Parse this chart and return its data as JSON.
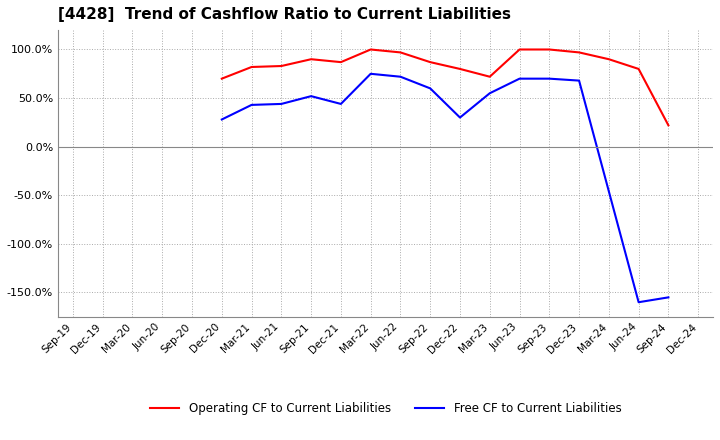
{
  "title": "[4428]  Trend of Cashflow Ratio to Current Liabilities",
  "title_fontsize": 11,
  "x_labels": [
    "Sep-19",
    "Dec-19",
    "Mar-20",
    "Jun-20",
    "Sep-20",
    "Dec-20",
    "Mar-21",
    "Jun-21",
    "Sep-21",
    "Dec-21",
    "Mar-22",
    "Jun-22",
    "Sep-22",
    "Dec-22",
    "Mar-23",
    "Jun-23",
    "Sep-23",
    "Dec-23",
    "Mar-24",
    "Jun-24",
    "Sep-24",
    "Dec-24"
  ],
  "operating_cf": [
    null,
    null,
    null,
    null,
    null,
    70.0,
    82.0,
    83.0,
    90.0,
    87.0,
    100.0,
    97.0,
    87.0,
    80.0,
    72.0,
    100.0,
    100.0,
    97.0,
    90.0,
    80.0,
    22.0,
    null
  ],
  "free_cf": [
    null,
    null,
    null,
    null,
    null,
    28.0,
    43.0,
    44.0,
    52.0,
    44.0,
    75.0,
    72.0,
    60.0,
    30.0,
    55.0,
    70.0,
    70.0,
    68.0,
    null,
    -160.0,
    -155.0,
    null
  ],
  "ylim": [
    -175,
    120
  ],
  "yticks": [
    100.0,
    50.0,
    0.0,
    -50.0,
    -100.0,
    -150.0
  ],
  "operating_color": "#FF0000",
  "free_color": "#0000FF",
  "grid_color": "#AAAAAA",
  "zero_line_color": "#888888",
  "bg_color": "#FFFFFF",
  "legend_labels": [
    "Operating CF to Current Liabilities",
    "Free CF to Current Liabilities"
  ]
}
